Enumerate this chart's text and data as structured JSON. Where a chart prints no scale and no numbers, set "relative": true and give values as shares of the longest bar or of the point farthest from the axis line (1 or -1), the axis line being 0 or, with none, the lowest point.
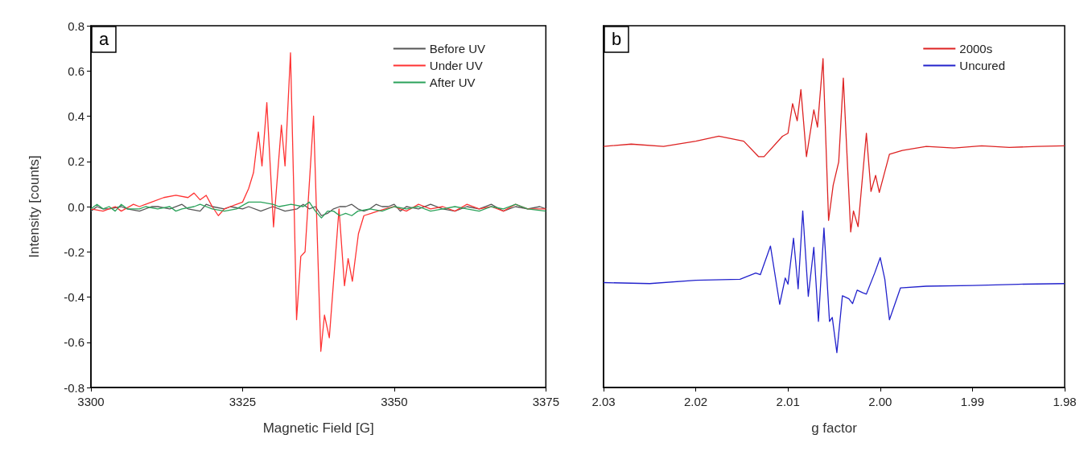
{
  "chart_data": [
    {
      "type": "line",
      "title": "a",
      "xlabel": "Magnetic Field [G]",
      "ylabel": "Intensity [counts]",
      "xlim": [
        3300,
        3375
      ],
      "xticks": [
        3300,
        3325,
        3350,
        3375
      ],
      "ylim": [
        -0.8,
        0.8
      ],
      "yticks": [
        -0.8,
        -0.6,
        -0.4,
        -0.2,
        {
          "value": 0,
          "label": "0.0"
        },
        0.2,
        0.4,
        0.6,
        0.8
      ],
      "grid": false,
      "legend": "top right",
      "marker": "none",
      "line_style": "solid",
      "series": [
        {
          "name": "Before UV",
          "color": "#555555",
          "x": [
            3300,
            3301,
            3302,
            3303,
            3305,
            3306,
            3308,
            3310,
            3311,
            3313,
            3315,
            3316,
            3318,
            3319,
            3320,
            3322,
            3323,
            3325,
            3326,
            3328,
            3330,
            3332,
            3334,
            3335,
            3336,
            3337,
            3338,
            3339,
            3340,
            3341,
            3342,
            3343,
            3344,
            3345,
            3346,
            3347,
            3348,
            3349,
            3350,
            3351,
            3352,
            3354,
            3356,
            3358,
            3360,
            3362,
            3364,
            3366,
            3368,
            3370,
            3372,
            3374,
            3375
          ],
          "values": [
            -0.02,
            0.0,
            -0.01,
            -0.01,
            0.0,
            -0.01,
            -0.02,
            0.0,
            0.0,
            -0.01,
            0.01,
            -0.01,
            -0.02,
            0.01,
            0.0,
            -0.01,
            0.0,
            -0.01,
            0.0,
            -0.02,
            0.0,
            -0.02,
            -0.01,
            0.01,
            -0.01,
            0.0,
            -0.04,
            -0.03,
            -0.01,
            0.0,
            0.0,
            0.01,
            -0.01,
            -0.02,
            -0.01,
            0.01,
            0.0,
            0.0,
            0.01,
            -0.02,
            0.0,
            -0.01,
            0.01,
            -0.01,
            -0.02,
            0.0,
            -0.01,
            0.01,
            -0.02,
            0.0,
            -0.01,
            0.0,
            -0.01
          ]
        },
        {
          "name": "Under UV",
          "color": "#ff3333",
          "x": [
            3300,
            3302,
            3304,
            3305,
            3307,
            3308,
            3310,
            3312,
            3314,
            3316,
            3317,
            3318,
            3319,
            3320,
            3321,
            3322,
            3323,
            3325,
            3326,
            3326.8,
            3327.6,
            3328.2,
            3329.0,
            3330.1,
            3331.4,
            3332.0,
            3332.9,
            3333.5,
            3333.9,
            3334.6,
            3335.3,
            3336.7,
            3337.9,
            3338.5,
            3339.3,
            3340.9,
            3341.8,
            3342.4,
            3343.1,
            3344.1,
            3345.0,
            3346.2,
            3347.3,
            3348.5,
            3350,
            3352,
            3354,
            3356,
            3358,
            3360,
            3362,
            3364,
            3366,
            3368,
            3370,
            3372,
            3375
          ],
          "values": [
            -0.01,
            -0.02,
            0.0,
            -0.02,
            0.01,
            0.0,
            0.02,
            0.04,
            0.05,
            0.04,
            0.06,
            0.03,
            0.05,
            0.0,
            -0.04,
            -0.01,
            0.0,
            0.02,
            0.08,
            0.15,
            0.33,
            0.18,
            0.46,
            -0.09,
            0.36,
            0.18,
            0.68,
            0.0,
            -0.5,
            -0.22,
            -0.2,
            0.4,
            -0.64,
            -0.48,
            -0.58,
            -0.01,
            -0.35,
            -0.23,
            -0.33,
            -0.12,
            -0.04,
            -0.03,
            -0.02,
            -0.01,
            0.0,
            -0.02,
            0.01,
            -0.01,
            0.0,
            -0.02,
            0.01,
            -0.01,
            0.0,
            -0.02,
            0.01,
            -0.01,
            -0.01
          ]
        },
        {
          "name": "After UV",
          "color": "#2aa25a",
          "x": [
            3300,
            3301,
            3302,
            3303,
            3304,
            3305,
            3306,
            3308,
            3309,
            3311,
            3313,
            3314,
            3315,
            3317,
            3318,
            3320,
            3322,
            3324,
            3326,
            3328,
            3330,
            3331,
            3333,
            3335,
            3336,
            3337,
            3338,
            3339,
            3340,
            3341,
            3342,
            3343,
            3344,
            3346,
            3348,
            3350,
            3352,
            3354,
            3356,
            3358,
            3360,
            3362,
            3364,
            3366,
            3368,
            3370,
            3372,
            3375
          ],
          "values": [
            -0.01,
            0.01,
            -0.01,
            0.0,
            -0.02,
            0.01,
            -0.01,
            -0.01,
            0.0,
            -0.01,
            0.0,
            -0.02,
            -0.01,
            0.0,
            0.01,
            -0.01,
            -0.02,
            -0.01,
            0.02,
            0.02,
            0.01,
            0.0,
            0.01,
            0.0,
            0.02,
            -0.02,
            -0.05,
            -0.02,
            -0.02,
            -0.04,
            -0.03,
            -0.04,
            -0.02,
            -0.01,
            -0.02,
            0.0,
            -0.01,
            0.0,
            -0.02,
            -0.01,
            0.0,
            -0.01,
            -0.02,
            0.0,
            -0.01,
            0.01,
            -0.01,
            -0.02
          ]
        }
      ]
    },
    {
      "type": "line",
      "title": "b",
      "xlabel": "g factor",
      "relative": true,
      "xlim": [
        2.03,
        1.98
      ],
      "xticks": [
        {
          "value": 2.03,
          "label": "2.03"
        },
        {
          "value": 2.02,
          "label": "2.02"
        },
        {
          "value": 2.01,
          "label": "2.01"
        },
        {
          "value": 2.0,
          "label": "2.00"
        },
        {
          "value": 1.99,
          "label": "1.99"
        },
        {
          "value": 1.98,
          "label": "1.98"
        }
      ],
      "tick_labels": "x",
      "grid": false,
      "legend": "top right",
      "marker": "none",
      "line_style": "solid",
      "series": [
        {
          "name": "2000s",
          "color": "#dd2222",
          "x": [
            2.03,
            2.027,
            2.0235,
            2.02,
            2.0175,
            2.0148,
            2.0132,
            2.0126,
            2.0106,
            2.01,
            2.0095,
            2.009,
            2.0086,
            2.008,
            2.0072,
            2.0068,
            2.0062,
            2.0056,
            2.0051,
            2.0045,
            2.004,
            2.0032,
            2.0029,
            2.0024,
            2.0015,
            2.001,
            2.0005,
            2.0001,
            1.999,
            1.9976,
            1.995,
            1.992,
            1.989,
            1.986,
            1.983,
            1.98
          ],
          "values": [
            0.733,
            0.74,
            0.733,
            0.749,
            0.764,
            0.749,
            0.702,
            0.702,
            0.764,
            0.773,
            0.863,
            0.811,
            0.906,
            0.702,
            0.844,
            0.792,
            1.0,
            0.508,
            0.615,
            0.686,
            0.941,
            0.473,
            0.537,
            0.489,
            0.773,
            0.596,
            0.645,
            0.593,
            0.709,
            0.721,
            0.733,
            0.728,
            0.735,
            0.73,
            0.733,
            0.735
          ]
        },
        {
          "name": "Uncured",
          "color": "#2222cc",
          "x": [
            2.03,
            2.025,
            2.02,
            2.0152,
            2.0135,
            2.013,
            2.0119,
            2.0109,
            2.0103,
            2.01,
            2.0094,
            2.0089,
            2.0084,
            2.0078,
            2.0072,
            2.0067,
            2.0061,
            2.0055,
            2.0052,
            2.0047,
            2.0041,
            2.0034,
            2.003,
            2.0025,
            2.0019,
            2.0015,
            2.0006,
            2.0,
            1.9995,
            1.999,
            1.9978,
            1.995,
            1.99,
            1.985,
            1.98
          ],
          "values": [
            0.319,
            0.316,
            0.326,
            0.329,
            0.348,
            0.343,
            0.43,
            0.253,
            0.333,
            0.314,
            0.454,
            0.3,
            0.537,
            0.277,
            0.426,
            0.201,
            0.485,
            0.201,
            0.213,
            0.106,
            0.279,
            0.27,
            0.255,
            0.296,
            0.288,
            0.284,
            0.348,
            0.395,
            0.329,
            0.206,
            0.303,
            0.308,
            0.31,
            0.314,
            0.316
          ]
        }
      ]
    }
  ]
}
